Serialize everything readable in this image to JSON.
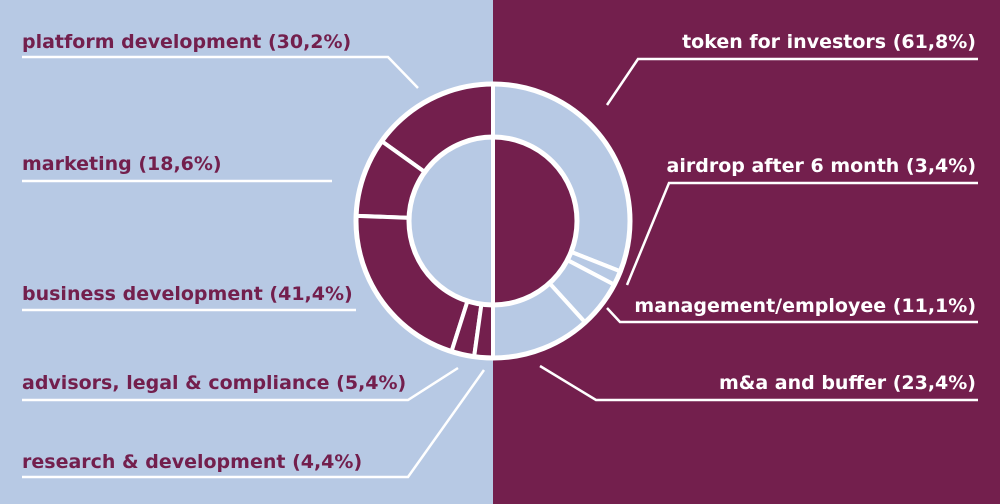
{
  "colors": {
    "left_panel": "#b7c9e4",
    "right_panel": "#731f4d",
    "divider": "#ffffff"
  },
  "chart_data": {
    "type": "pie",
    "variant": "double-donut",
    "title": "",
    "rings": [
      {
        "name": "",
        "side": "left",
        "color": "#731f4d",
        "segments": [
          {
            "label": "platform development (30,2%)",
            "value": 30.2
          },
          {
            "label": "marketing (18,6%)",
            "value": 18.6
          },
          {
            "label": "business development (41,4%)",
            "value": 41.4
          },
          {
            "label": "advisors, legal & compliance (5,4%)",
            "value": 5.4
          },
          {
            "label": "research & development (4,4%)",
            "value": 4.4
          }
        ]
      },
      {
        "name": "",
        "side": "right",
        "color": "#b7c9e4",
        "segments": [
          {
            "label": "token for investors (61,8%)",
            "value": 61.8
          },
          {
            "label": "airdrop after 6 month (3,4%)",
            "value": 3.4
          },
          {
            "label": "management/employee (11,1%)",
            "value": 11.1
          },
          {
            "label": "m&a and buffer (23,4%)",
            "value": 23.4
          }
        ]
      }
    ]
  }
}
